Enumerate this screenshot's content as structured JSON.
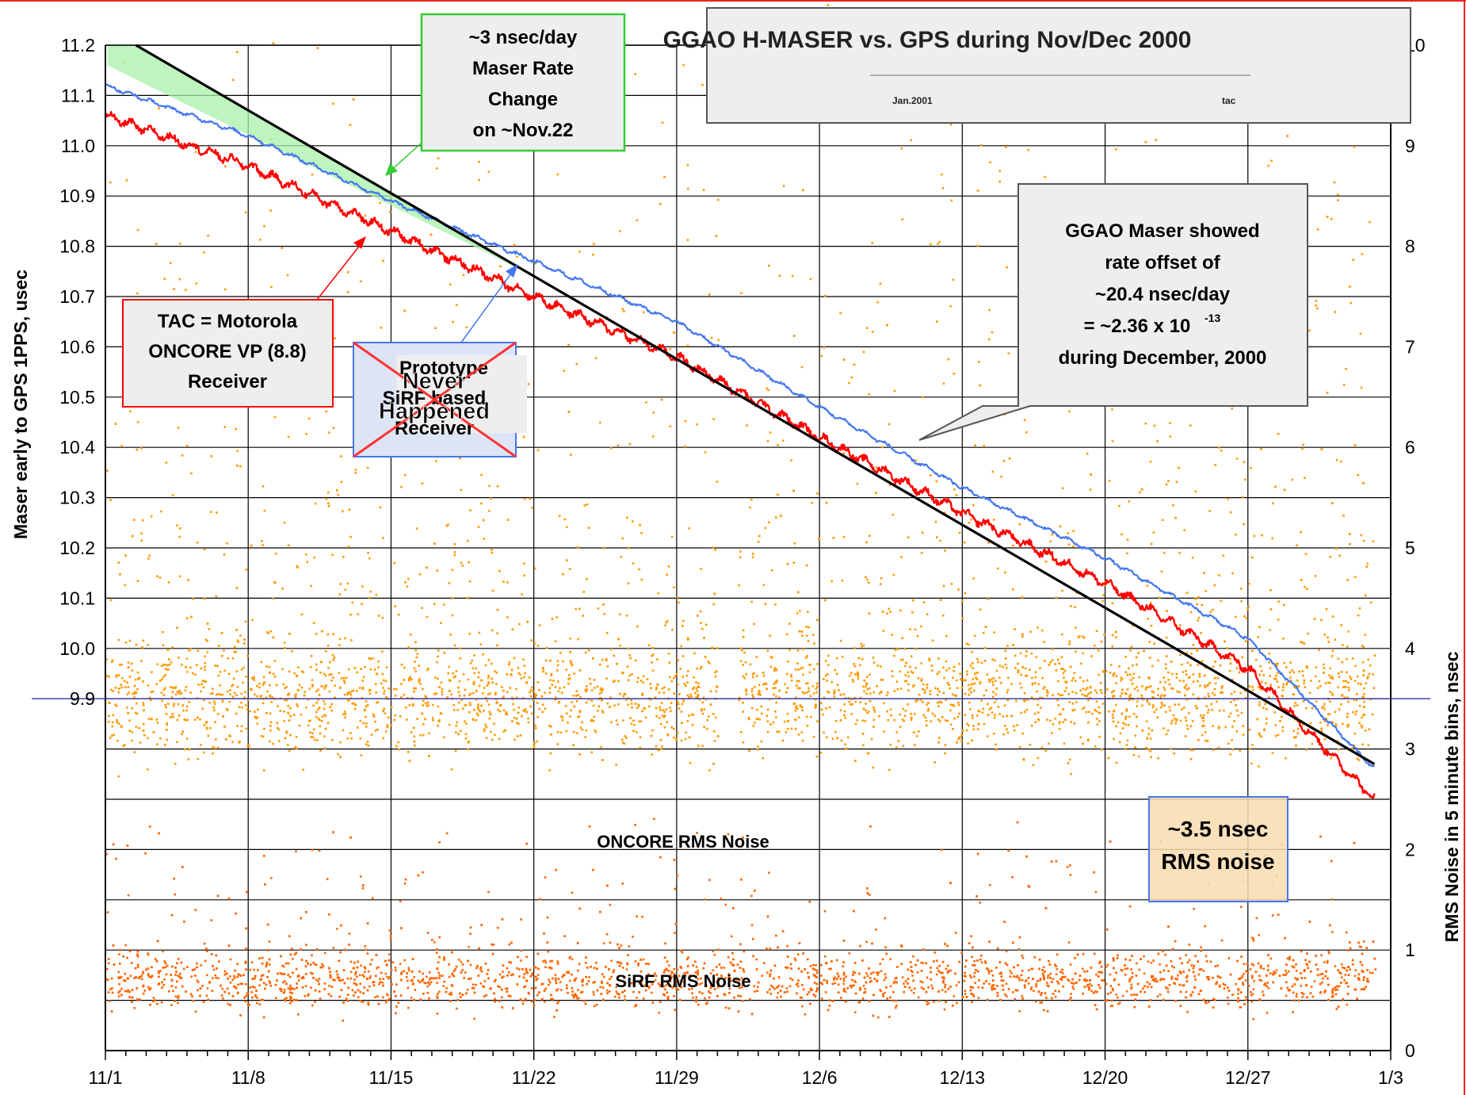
{
  "chart_data": {
    "type": "line",
    "title": "GGAO H-MASER vs. GPS during Nov/Dec 2000",
    "subtitle_left": "Jan.2001",
    "subtitle_right": "tac",
    "ylabel": "Maser early to GPS 1PPS, usec",
    "y2label": "RMS Noise in 5 minute bins, nsec",
    "x_tick_labels": [
      "11/1",
      "11/8",
      "11/15",
      "11/22",
      "11/29",
      "12/6",
      "12/13",
      "12/20",
      "12/27",
      "1/3"
    ],
    "xlim_days": [
      0,
      63
    ],
    "y_ticks": [
      "11.2",
      "11.1",
      "11.0",
      "10.9",
      "10.8",
      "10.7",
      "10.6",
      "10.5",
      "10.4",
      "10.3",
      "10.2",
      "10.1",
      "10.0",
      "9.9"
    ],
    "ylim": [
      9.2,
      11.2
    ],
    "y2_ticks": [
      "10",
      "9",
      "8",
      "7",
      "6",
      "5",
      "4",
      "3",
      "2",
      "1",
      "0"
    ],
    "y2lim": [
      0,
      10
    ],
    "grid": true,
    "series": [
      {
        "name": "TAC = Motorola ONCORE VP (8.8) Receiver",
        "color": "#ff0000",
        "x": [
          0,
          7,
          14,
          21,
          28,
          35,
          42,
          49,
          56,
          62.2
        ],
        "y": [
          11.06,
          10.96,
          10.83,
          10.7,
          10.58,
          10.42,
          10.27,
          10.13,
          9.96,
          9.7
        ]
      },
      {
        "name": "Prototype SiRF based Receiver",
        "color": "#4477ee",
        "x": [
          0,
          7,
          14,
          21,
          28,
          35,
          42,
          49,
          56,
          62.2
        ],
        "y": [
          11.12,
          11.02,
          10.89,
          10.77,
          10.65,
          10.48,
          10.32,
          10.18,
          10.02,
          9.76
        ]
      },
      {
        "name": "GGAO Maser rate offset line",
        "color": "#000000",
        "x": [
          1.5,
          62.2
        ],
        "y": [
          11.2,
          9.77
        ]
      }
    ],
    "noise_series": [
      {
        "name": "ONCORE RMS Noise",
        "color": "#ff9900",
        "level_nsec": 3.5
      },
      {
        "name": "SiRF RMS Noise",
        "color": "#ff6600",
        "level_nsec": 0.7
      }
    ],
    "reference_line_nsec": 3.5,
    "annotations": {
      "rate_change": [
        "~3 nsec/day",
        "Maser Rate",
        "Change",
        "on ~Nov.22"
      ],
      "maser_offset": [
        "GGAO Maser showed",
        "rate offset of",
        "~20.4 nsec/day",
        "= ~2.36 x 10",
        "-13",
        "during December, 2000"
      ],
      "tac_receiver": [
        "TAC = Motorola",
        "ONCORE VP (8.8)",
        "Receiver"
      ],
      "sirf_receiver": [
        "Prototype",
        "SiRF based",
        "Receiver"
      ],
      "never_happened": [
        "Never",
        "Happened"
      ],
      "rms_noise": [
        "~3.5 nsec",
        "RMS noise"
      ],
      "oncore_label": "ONCORE RMS Noise",
      "sirf_label": "SiRF RMS Noise"
    }
  }
}
